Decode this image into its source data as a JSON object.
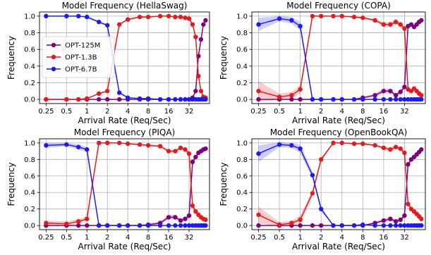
{
  "figure": {
    "x_unit_label": "Arrival Rate (Req/Sec)",
    "y_label": "Frequency"
  },
  "colors": {
    "OPT-125M": "#7f007f",
    "OPT-1.3B": "#e41a1c",
    "OPT-6.7B": "#1a1aff"
  },
  "chart_data": [
    {
      "type": "line",
      "title": "Model Frequency (HellaSwag)",
      "xlabel": "Arrival Rate (Req/Sec)",
      "ylabel": "Frequency",
      "x_scale": "log2",
      "xlim": [
        0.2,
        64
      ],
      "ylim": [
        -0.05,
        1.05
      ],
      "xticks": [
        "0.25",
        "0.5",
        "1",
        "2",
        "4",
        "8",
        "16",
        "32"
      ],
      "yticks": [
        "0.0",
        "0.2",
        "0.4",
        "0.6",
        "0.8",
        "1.0"
      ],
      "grid": true,
      "legend": "left",
      "x": [
        0.25,
        0.5,
        0.75,
        1,
        1.5,
        2,
        3,
        4,
        6,
        8,
        12,
        16,
        20,
        24,
        28,
        32,
        36,
        40,
        44,
        48,
        52,
        56
      ],
      "series": [
        {
          "name": "OPT-125M",
          "values": [
            0,
            0,
            0,
            0,
            0,
            0,
            0,
            0,
            0,
            0,
            0,
            0,
            0,
            0,
            0,
            0,
            0.02,
            0.1,
            0.52,
            0.72,
            0.9,
            0.95
          ],
          "band": [
            0,
            0,
            0,
            0,
            0,
            0,
            0,
            0,
            0,
            0,
            0,
            0,
            0,
            0,
            0,
            0,
            0.01,
            0.02,
            0.03,
            0.03,
            0.02,
            0.02
          ]
        },
        {
          "name": "OPT-1.3B",
          "values": [
            0,
            0,
            0,
            0.01,
            0.07,
            0.1,
            0.9,
            0.96,
            0.99,
            0.99,
            1,
            1,
            0.99,
            0.99,
            0.98,
            0.97,
            0.9,
            0.75,
            0.28,
            0.1,
            0.03,
            0.02
          ],
          "band": [
            0,
            0,
            0,
            0,
            0.01,
            0.01,
            0.01,
            0.01,
            0.01,
            0,
            0,
            0,
            0,
            0,
            0.01,
            0.01,
            0.02,
            0.03,
            0.03,
            0.02,
            0.01,
            0.01
          ]
        },
        {
          "name": "OPT-6.7B",
          "values": [
            1,
            1,
            1,
            0.99,
            0.93,
            0.89,
            0.08,
            0.02,
            0.01,
            0.01,
            0,
            0,
            0,
            0,
            0,
            0,
            0,
            0,
            0,
            0,
            0,
            0
          ],
          "band": [
            0,
            0,
            0,
            0.01,
            0.01,
            0.01,
            0.01,
            0.01,
            0,
            0,
            0,
            0,
            0,
            0,
            0,
            0,
            0,
            0,
            0,
            0,
            0,
            0
          ]
        }
      ]
    },
    {
      "type": "line",
      "title": "Model Frequency (COPA)",
      "xlabel": "Arrival Rate (Req/Sec)",
      "ylabel": "Frequency",
      "x_scale": "log2",
      "xlim": [
        0.2,
        64
      ],
      "ylim": [
        -0.05,
        1.05
      ],
      "xticks": [
        "0.25",
        "0.5",
        "1",
        "2",
        "4",
        "8",
        "16",
        "32"
      ],
      "yticks": [
        "0.0",
        "0.2",
        "0.4",
        "0.6",
        "0.8",
        "1.0"
      ],
      "grid": true,
      "x": [
        0.25,
        0.5,
        0.75,
        1,
        1.5,
        2,
        3,
        4,
        6,
        8,
        12,
        16,
        20,
        24,
        28,
        32,
        36,
        40,
        44,
        48,
        52,
        56
      ],
      "series": [
        {
          "name": "OPT-125M",
          "values": [
            0,
            0,
            0,
            0,
            0,
            0,
            0,
            0,
            0,
            0.02,
            0.05,
            0.1,
            0.1,
            0.05,
            0.09,
            0.15,
            0.88,
            0.9,
            0.87,
            0.9,
            0.93,
            0.95
          ],
          "band": [
            0,
            0,
            0,
            0,
            0,
            0,
            0,
            0,
            0,
            0.01,
            0.02,
            0.03,
            0.03,
            0.02,
            0.03,
            0.03,
            0.03,
            0.02,
            0.03,
            0.02,
            0.02,
            0.02
          ]
        },
        {
          "name": "OPT-1.3B",
          "values": [
            0.1,
            0.03,
            0.05,
            0.12,
            1,
            1,
            1,
            1,
            0.99,
            0.98,
            0.95,
            0.9,
            0.9,
            0.93,
            0.9,
            0.85,
            0.12,
            0.1,
            0.13,
            0.1,
            0.07,
            0.05
          ],
          "band": [
            0.12,
            0.04,
            0.04,
            0.05,
            0,
            0,
            0,
            0,
            0.01,
            0.01,
            0.02,
            0.03,
            0.03,
            0.02,
            0.03,
            0.03,
            0.03,
            0.02,
            0.03,
            0.02,
            0.02,
            0.02
          ]
        },
        {
          "name": "OPT-6.7B",
          "values": [
            0.9,
            0.97,
            0.95,
            0.88,
            0,
            0,
            0,
            0,
            0,
            0,
            0,
            0,
            0,
            0,
            0,
            0,
            0,
            0,
            0,
            0,
            0,
            0
          ],
          "band": [
            0.08,
            0.03,
            0.04,
            0.05,
            0,
            0,
            0,
            0,
            0,
            0,
            0,
            0,
            0,
            0,
            0,
            0,
            0,
            0,
            0,
            0,
            0,
            0
          ]
        }
      ]
    },
    {
      "type": "line",
      "title": "Model Frequency (PIQA)",
      "xlabel": "Arrival Rate (Req/Sec)",
      "ylabel": "Frequency",
      "x_scale": "log2",
      "xlim": [
        0.2,
        64
      ],
      "ylim": [
        -0.05,
        1.05
      ],
      "xticks": [
        "0.25",
        "0.5",
        "1",
        "2",
        "4",
        "8",
        "16",
        "32"
      ],
      "yticks": [
        "0.0",
        "0.2",
        "0.4",
        "0.6",
        "0.8",
        "1.0"
      ],
      "grid": true,
      "x": [
        0.25,
        0.5,
        0.75,
        1,
        1.5,
        2,
        3,
        4,
        6,
        8,
        12,
        16,
        20,
        24,
        28,
        32,
        36,
        40,
        44,
        48,
        52,
        56
      ],
      "series": [
        {
          "name": "OPT-125M",
          "values": [
            0,
            0,
            0,
            0,
            0,
            0,
            0,
            0,
            0,
            0.01,
            0.03,
            0.1,
            0.1,
            0.06,
            0.08,
            0.12,
            0.77,
            0.83,
            0.88,
            0.9,
            0.92,
            0.93
          ],
          "band": [
            0,
            0,
            0,
            0,
            0,
            0,
            0,
            0,
            0,
            0.01,
            0.02,
            0.03,
            0.03,
            0.02,
            0.02,
            0.03,
            0.03,
            0.02,
            0.02,
            0.02,
            0.02,
            0.02
          ]
        },
        {
          "name": "OPT-1.3B",
          "values": [
            0.03,
            0.02,
            0.05,
            0.08,
            1,
            1,
            1,
            0.99,
            0.98,
            0.97,
            0.96,
            0.9,
            0.9,
            0.94,
            0.92,
            0.87,
            0.24,
            0.17,
            0.13,
            0.1,
            0.08,
            0.07
          ],
          "band": [
            0.03,
            0.03,
            0.03,
            0.03,
            0,
            0,
            0,
            0,
            0.01,
            0.01,
            0.01,
            0.02,
            0.02,
            0.02,
            0.02,
            0.03,
            0.03,
            0.03,
            0.02,
            0.02,
            0.02,
            0.02
          ]
        },
        {
          "name": "OPT-6.7B",
          "values": [
            0.97,
            0.98,
            0.95,
            0.92,
            0,
            0,
            0,
            0,
            0,
            0,
            0,
            0,
            0,
            0,
            0,
            0,
            0,
            0,
            0,
            0,
            0,
            0
          ],
          "band": [
            0.03,
            0.02,
            0.03,
            0.03,
            0,
            0,
            0,
            0,
            0,
            0,
            0,
            0,
            0,
            0,
            0,
            0,
            0,
            0,
            0,
            0,
            0,
            0
          ]
        }
      ]
    },
    {
      "type": "line",
      "title": "Model Frequency (OpenBookQA)",
      "xlabel": "Arrival Rate (Req/Sec)",
      "ylabel": "Frequency",
      "x_scale": "log2",
      "xlim": [
        0.2,
        64
      ],
      "ylim": [
        -0.05,
        1.05
      ],
      "xticks": [
        "0.25",
        "0.5",
        "1",
        "2",
        "4",
        "8",
        "16",
        "32"
      ],
      "yticks": [
        "0.0",
        "0.2",
        "0.4",
        "0.6",
        "0.8",
        "1.0"
      ],
      "grid": true,
      "x": [
        0.25,
        0.5,
        0.75,
        1,
        1.5,
        2,
        3,
        4,
        6,
        8,
        12,
        16,
        20,
        24,
        28,
        32,
        36,
        40,
        44,
        48,
        52,
        56
      ],
      "series": [
        {
          "name": "OPT-125M",
          "values": [
            0,
            0,
            0,
            0,
            0,
            0,
            0,
            0,
            0,
            0,
            0.03,
            0.06,
            0.08,
            0.05,
            0.07,
            0.12,
            0.74,
            0.8,
            0.83,
            0.86,
            0.89,
            0.92
          ],
          "band": [
            0,
            0,
            0,
            0,
            0,
            0,
            0,
            0,
            0,
            0,
            0.02,
            0.02,
            0.03,
            0.02,
            0.02,
            0.03,
            0.03,
            0.02,
            0.02,
            0.02,
            0.02,
            0.02
          ]
        },
        {
          "name": "OPT-1.3B",
          "values": [
            0.13,
            0.01,
            0.03,
            0.07,
            0.39,
            0.8,
            1,
            1,
            0.99,
            0.99,
            0.97,
            0.94,
            0.92,
            0.95,
            0.93,
            0.88,
            0.26,
            0.2,
            0.17,
            0.14,
            0.11,
            0.08
          ],
          "band": [
            0.1,
            0.03,
            0.03,
            0.05,
            0.04,
            0.03,
            0,
            0,
            0.01,
            0.01,
            0.01,
            0.02,
            0.03,
            0.02,
            0.02,
            0.03,
            0.03,
            0.03,
            0.02,
            0.02,
            0.02,
            0.02
          ]
        },
        {
          "name": "OPT-6.7B",
          "values": [
            0.87,
            0.98,
            0.97,
            0.93,
            0.61,
            0.2,
            0,
            0,
            0,
            0.01,
            0,
            0,
            0,
            0,
            0,
            0,
            0,
            0,
            0,
            0,
            0,
            0
          ],
          "band": [
            0.1,
            0.03,
            0.03,
            0.05,
            0.04,
            0.03,
            0,
            0,
            0,
            0.01,
            0,
            0,
            0,
            0,
            0,
            0,
            0,
            0,
            0,
            0,
            0,
            0
          ]
        }
      ]
    }
  ]
}
